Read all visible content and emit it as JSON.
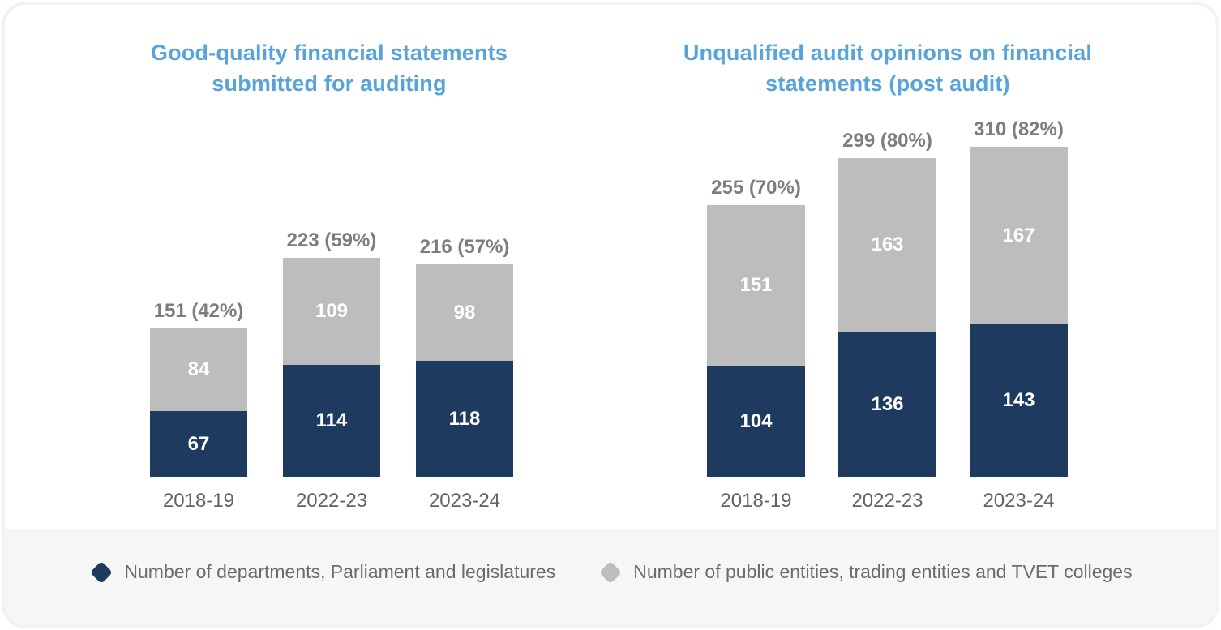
{
  "colors": {
    "navy": "#1e3a5f",
    "gray": "#bdbdbd",
    "title_blue": "#57a3da",
    "total_label_gray": "#7d7d7d",
    "axis_label_gray": "#636363",
    "footer_bg": "#f5f6f6",
    "card_border": "#f0f3f3"
  },
  "legend": {
    "items": [
      {
        "label": "Number of departments, Parliament and legislatures",
        "color": "#1e3a5f"
      },
      {
        "label": "Number of public entities, trading entities and TVET colleges",
        "color": "#bdbdbd"
      }
    ]
  },
  "chart_data": [
    {
      "type": "bar",
      "stacked": true,
      "title": "Good-quality financial statements submitted for auditing",
      "title_lines": [
        "Good-quality financial statements",
        "submitted for auditing"
      ],
      "categories": [
        "2018-19",
        "2022-23",
        "2023-24"
      ],
      "series": [
        {
          "name": "Number of departments, Parliament and legislatures",
          "color": "#1e3a5f",
          "values": [
            67,
            114,
            118
          ]
        },
        {
          "name": "Number of public entities, trading entities and TVET colleges",
          "color": "#bdbdbd",
          "values": [
            84,
            109,
            98
          ]
        }
      ],
      "totals": [
        151,
        223,
        216
      ],
      "total_labels": [
        "151 (42%)",
        "223 (59%)",
        "216 (57%)"
      ],
      "xlabel": "",
      "ylabel": "",
      "grid": false,
      "axes_hidden": true,
      "legend_position": "bottom-shared"
    },
    {
      "type": "bar",
      "stacked": true,
      "title": "Unqualified audit opinions on financial statements (post audit)",
      "title_lines": [
        "Unqualified audit opinions on financial",
        "statements (post audit)"
      ],
      "categories": [
        "2018-19",
        "2022-23",
        "2023-24"
      ],
      "series": [
        {
          "name": "Number of departments, Parliament and legislatures",
          "color": "#1e3a5f",
          "values": [
            104,
            136,
            143
          ]
        },
        {
          "name": "Number of public entities, trading entities and TVET colleges",
          "color": "#bdbdbd",
          "values": [
            151,
            163,
            167
          ]
        }
      ],
      "totals": [
        255,
        299,
        310
      ],
      "total_labels": [
        "255 (70%)",
        "299 (80%)",
        "310 (82%)"
      ],
      "xlabel": "",
      "ylabel": "",
      "grid": false,
      "axes_hidden": true,
      "legend_position": "bottom-shared"
    }
  ]
}
